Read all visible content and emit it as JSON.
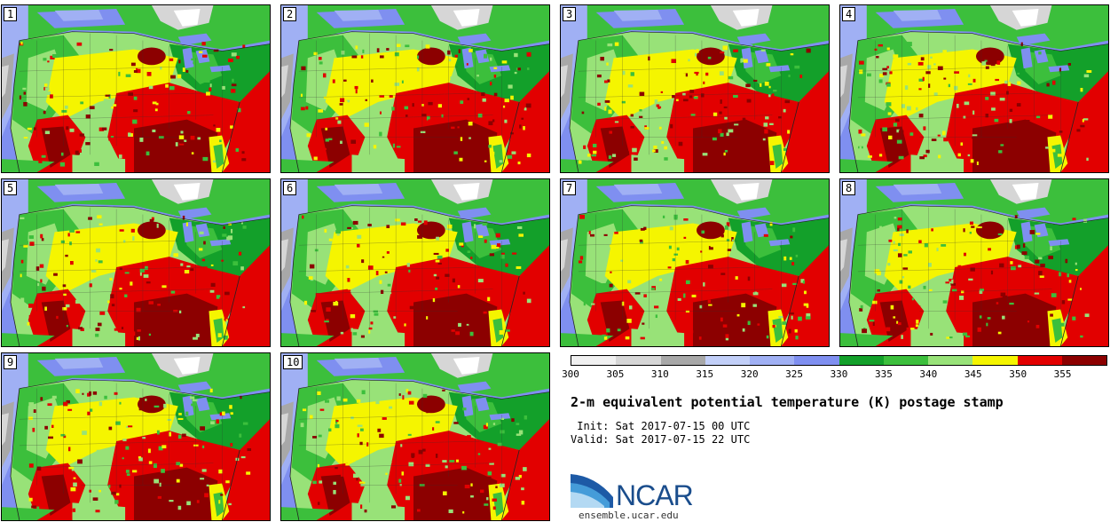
{
  "panels": [
    "1",
    "2",
    "3",
    "4",
    "5",
    "6",
    "7",
    "8",
    "9",
    "10"
  ],
  "colorbar": {
    "ticks": [
      "300",
      "305",
      "310",
      "315",
      "320",
      "325",
      "330",
      "335",
      "340",
      "345",
      "350",
      "355"
    ],
    "colors": [
      "#f0f0f0",
      "#d6d6d6",
      "#a8a8a8",
      "#c2cff8",
      "#a0b0f4",
      "#7f8ff0",
      "#13a02a",
      "#3cbf3c",
      "#98e278",
      "#f5f500",
      "#e20000",
      "#8c0000"
    ]
  },
  "title": "2-m equivalent potential temperature (K) postage stamp",
  "init": " Init: Sat 2017-07-15 00 UTC",
  "valid": "Valid: Sat 2017-07-15 22 UTC",
  "logo": {
    "text": "NCAR",
    "url": "ensemble.ucar.edu"
  }
}
